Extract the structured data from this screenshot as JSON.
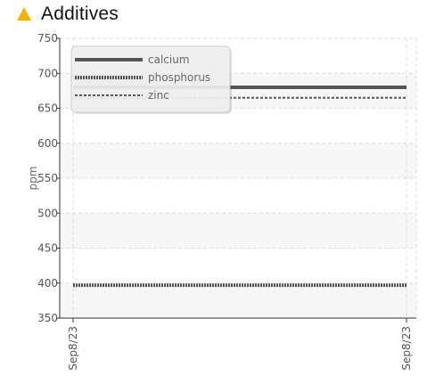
{
  "header": {
    "title": "Additives",
    "icon": "warning-triangle-icon",
    "icon_color": "#f5b301"
  },
  "chart_data": {
    "type": "line",
    "title": "Additives",
    "xlabel": "",
    "ylabel": "ppm",
    "x": [
      "Sep8/23",
      "Sep8/23"
    ],
    "ylim": [
      350,
      750
    ],
    "yticks": [
      350,
      400,
      450,
      500,
      550,
      600,
      650,
      700,
      750
    ],
    "grid": true,
    "legend_position": "top-left",
    "series": [
      {
        "name": "calcium",
        "values": [
          680,
          680
        ],
        "color": "#555555",
        "style": "solid"
      },
      {
        "name": "phosphorus",
        "values": [
          397,
          397
        ],
        "color": "#555555",
        "style": "dotted"
      },
      {
        "name": "zinc",
        "values": [
          665,
          665
        ],
        "color": "#555555",
        "style": "dashed"
      }
    ]
  }
}
